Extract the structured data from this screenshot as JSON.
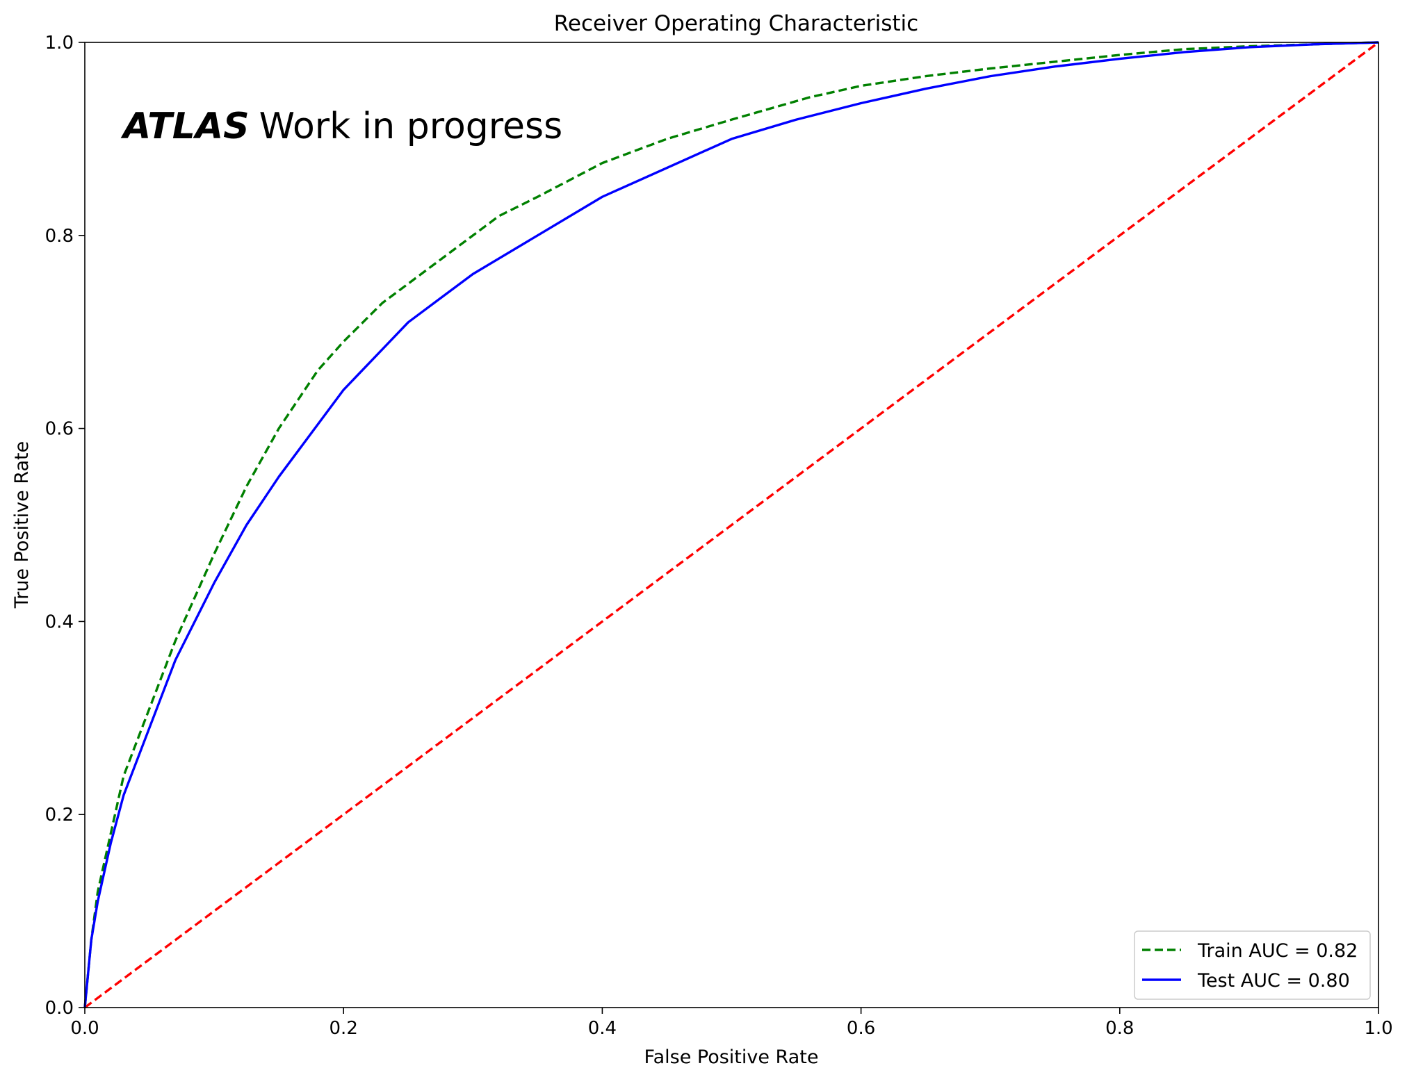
{
  "chart_data": {
    "type": "line",
    "title": "Receiver Operating Characteristic",
    "xlabel": "False Positive Rate",
    "ylabel": "True Positive Rate",
    "xlim": [
      0,
      1
    ],
    "ylim": [
      0,
      1
    ],
    "x_ticks": [
      "0.0",
      "0.2",
      "0.4",
      "0.6",
      "0.8",
      "1.0"
    ],
    "y_ticks": [
      "0.0",
      "0.2",
      "0.4",
      "0.6",
      "0.8",
      "1.0"
    ],
    "grid": false,
    "legend_position": "lower-right",
    "annotation": {
      "bold": "ATLAS",
      "text": "Work in progress"
    },
    "series": [
      {
        "name": "Train AUC = 0.82",
        "color": "#008000",
        "style": "dashed",
        "x": [
          0,
          0.005,
          0.01,
          0.02,
          0.03,
          0.05,
          0.07,
          0.1,
          0.125,
          0.15,
          0.18,
          0.2,
          0.23,
          0.25,
          0.29,
          0.32,
          0.35,
          0.4,
          0.45,
          0.5,
          0.56,
          0.6,
          0.65,
          0.7,
          0.75,
          0.8,
          0.85,
          0.9,
          0.95,
          1.0
        ],
        "y": [
          0,
          0.07,
          0.12,
          0.18,
          0.24,
          0.31,
          0.38,
          0.47,
          0.54,
          0.6,
          0.66,
          0.69,
          0.73,
          0.75,
          0.79,
          0.82,
          0.84,
          0.875,
          0.9,
          0.92,
          0.943,
          0.955,
          0.965,
          0.973,
          0.98,
          0.987,
          0.993,
          0.996,
          0.998,
          1.0
        ]
      },
      {
        "name": "Test AUC = 0.80",
        "color": "#0000ff",
        "style": "solid",
        "x": [
          0,
          0.005,
          0.01,
          0.02,
          0.03,
          0.05,
          0.07,
          0.1,
          0.125,
          0.15,
          0.2,
          0.25,
          0.3,
          0.35,
          0.4,
          0.45,
          0.5,
          0.55,
          0.6,
          0.65,
          0.7,
          0.75,
          0.8,
          0.85,
          0.9,
          0.95,
          1.0
        ],
        "y": [
          0,
          0.07,
          0.11,
          0.17,
          0.22,
          0.29,
          0.36,
          0.44,
          0.5,
          0.55,
          0.64,
          0.71,
          0.76,
          0.8,
          0.84,
          0.87,
          0.9,
          0.92,
          0.937,
          0.952,
          0.965,
          0.975,
          0.983,
          0.99,
          0.995,
          0.998,
          1.0
        ]
      },
      {
        "name": "",
        "color": "#ff0000",
        "style": "dashed",
        "x": [
          0,
          1
        ],
        "y": [
          0,
          1
        ]
      }
    ]
  }
}
